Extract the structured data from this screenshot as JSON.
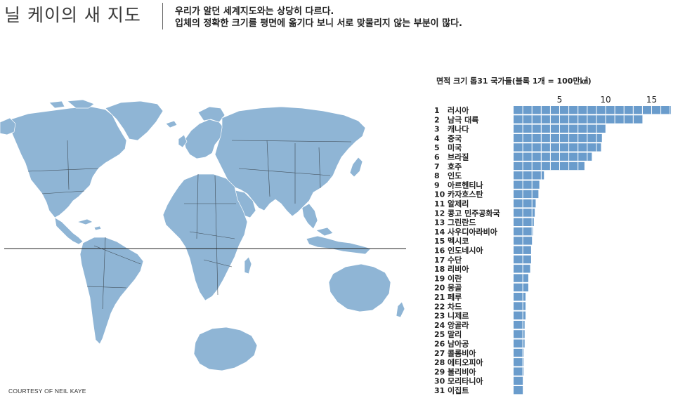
{
  "header": {
    "title": "닐 케이의 새 지도",
    "subtitle_line1": "우리가 알던 세계지도와는 상당히 다르다.",
    "subtitle_line2": "입체의 정확한 크기를 평면에 옮기다 보니 서로 맞물리지 않는 부분이 많다."
  },
  "map": {
    "credit": "COURTESY OF NEIL KAYE",
    "land_color": "#8fb5d5",
    "border_color": "#3f4b55"
  },
  "chart_title": "면적 크기 톱31 국가들(블록 1개 = 100만㎢)",
  "chart_data": {
    "type": "bar",
    "orientation": "horizontal",
    "title": "면적 크기 톱31 국가들(블록 1개 = 100만㎢)",
    "xlabel": "",
    "ylabel": "",
    "x_ticks": [
      5,
      10,
      15
    ],
    "xlim": [
      0,
      17
    ],
    "bar_color": "#6a9ccc",
    "categories": [
      "러시아",
      "남극 대륙",
      "캐나다",
      "중국",
      "미국",
      "브라질",
      "호주",
      "인도",
      "아르헨티나",
      "카자흐스탄",
      "알제리",
      "콩고 민주공화국",
      "그린란드",
      "사우디아라비아",
      "멕시코",
      "인도네시아",
      "수단",
      "리비아",
      "이란",
      "몽골",
      "페루",
      "차드",
      "니제르",
      "앙골라",
      "말리",
      "남아공",
      "콜롬비아",
      "에티오피아",
      "볼리비아",
      "모리타니아",
      "이집트"
    ],
    "ranks": [
      "1",
      "2",
      "3",
      "4",
      "5",
      "6",
      "7",
      "8",
      "9",
      "10",
      "11",
      "12",
      "13",
      "14",
      "15",
      "16",
      "17",
      "18",
      "19",
      "20",
      "21",
      "22",
      "23",
      "24",
      "25",
      "26",
      "27",
      "28",
      "29",
      "30",
      "31"
    ],
    "values": [
      17.1,
      14.0,
      9.98,
      9.6,
      9.5,
      8.5,
      7.7,
      3.3,
      2.8,
      2.7,
      2.4,
      2.3,
      2.2,
      2.1,
      2.0,
      1.9,
      1.9,
      1.8,
      1.6,
      1.6,
      1.3,
      1.3,
      1.3,
      1.2,
      1.2,
      1.2,
      1.1,
      1.1,
      1.1,
      1.0,
      1.0
    ]
  }
}
